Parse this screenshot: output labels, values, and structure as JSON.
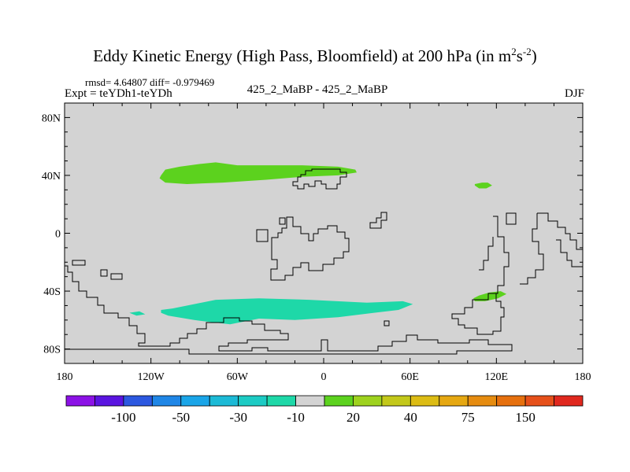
{
  "chart_data": {
    "type": "map-contour",
    "title_main": "Eddy Kinetic Energy (High Pass, Bloomfield) at 200 hPa (in m",
    "title_sup1": "2",
    "title_mid": "s",
    "title_sup2": "-2",
    "title_end": ")",
    "stats": "rmsd= 4.64807 diff= -0.979469",
    "expt": "Expt = teYDh1-teYDh",
    "case_label": "425_2_MaBP - 425_2_MaBP",
    "season": "DJF",
    "xlim": [
      -180,
      180
    ],
    "ylim": [
      -90,
      90
    ],
    "x_ticks": [
      {
        "value": -180,
        "label": "180"
      },
      {
        "value": -120,
        "label": "120W"
      },
      {
        "value": -60,
        "label": "60W"
      },
      {
        "value": 0,
        "label": "0"
      },
      {
        "value": 60,
        "label": "60E"
      },
      {
        "value": 120,
        "label": "120E"
      },
      {
        "value": 180,
        "label": "180"
      }
    ],
    "y_ticks": [
      {
        "value": 80,
        "label": "80N"
      },
      {
        "value": 40,
        "label": "40N"
      },
      {
        "value": 0,
        "label": "0"
      },
      {
        "value": -40,
        "label": "40S"
      },
      {
        "value": -80,
        "label": "80S"
      }
    ],
    "background_color": "#d3d3d3",
    "colorbar": {
      "colors": [
        "#8c12e6",
        "#5a14e0",
        "#2c58e0",
        "#1f86e6",
        "#1aa5e8",
        "#1cbad6",
        "#1ccbc4",
        "#1ed8a8",
        "#d3d3d3",
        "#5cd21e",
        "#9ed21e",
        "#c3c81a",
        "#dcbc14",
        "#e6a812",
        "#e68c10",
        "#e6700e",
        "#e6501a",
        "#e0281e"
      ],
      "labels": [
        {
          "after_index": 1,
          "text": "-100"
        },
        {
          "after_index": 3,
          "text": "-50"
        },
        {
          "after_index": 5,
          "text": "-30"
        },
        {
          "after_index": 7,
          "text": "-10"
        },
        {
          "after_index": 9,
          "text": "20"
        },
        {
          "after_index": 11,
          "text": "40"
        },
        {
          "after_index": 13,
          "text": "75"
        },
        {
          "after_index": 15,
          "text": "150"
        }
      ]
    },
    "regions": [
      {
        "name": "north-atlantic-positive",
        "value_class": "10 to 20",
        "color": "#5cd21e",
        "lonlat": [
          [
            -113,
            40
          ],
          [
            -110,
            44
          ],
          [
            -100,
            46
          ],
          [
            -85,
            48
          ],
          [
            -75,
            49
          ],
          [
            -60,
            47
          ],
          [
            -40,
            47
          ],
          [
            -15,
            47
          ],
          [
            10,
            46
          ],
          [
            22,
            44
          ],
          [
            23,
            42
          ],
          [
            10,
            40
          ],
          [
            -15,
            39
          ],
          [
            -40,
            37
          ],
          [
            -70,
            35
          ],
          [
            -95,
            34
          ],
          [
            -110,
            35
          ],
          [
            -114,
            38
          ]
        ]
      },
      {
        "name": "north-pacific-positive",
        "value_class": "10 to 20",
        "color": "#5cd21e",
        "lonlat": [
          [
            105,
            34
          ],
          [
            110,
            35
          ],
          [
            114,
            35
          ],
          [
            117,
            33
          ],
          [
            113,
            31
          ],
          [
            108,
            31
          ],
          [
            105,
            33
          ]
        ]
      },
      {
        "name": "australia-positive",
        "value_class": "10 to 20",
        "color": "#5cd21e",
        "lonlat": [
          [
            104,
            -45
          ],
          [
            108,
            -43
          ],
          [
            115,
            -41
          ],
          [
            123,
            -40
          ],
          [
            127,
            -42
          ],
          [
            121,
            -45
          ],
          [
            112,
            -47
          ],
          [
            105,
            -47
          ]
        ]
      },
      {
        "name": "southern-ocean-negative",
        "value_class": "-10 to 0",
        "color": "#1ed8a8",
        "lonlat": [
          [
            -113,
            -53
          ],
          [
            -105,
            -52
          ],
          [
            -90,
            -49
          ],
          [
            -75,
            -46
          ],
          [
            -45,
            -45
          ],
          [
            -10,
            -46
          ],
          [
            30,
            -48
          ],
          [
            55,
            -47
          ],
          [
            62,
            -49
          ],
          [
            52,
            -53
          ],
          [
            35,
            -55
          ],
          [
            10,
            -58
          ],
          [
            -20,
            -60
          ],
          [
            -45,
            -59
          ],
          [
            -65,
            -63
          ],
          [
            -90,
            -60
          ],
          [
            -108,
            -57
          ],
          [
            -113,
            -55
          ]
        ]
      },
      {
        "name": "southern-pacific-negative",
        "value_class": "-10 to 0",
        "color": "#1ed8a8",
        "lonlat": [
          [
            -135,
            -55
          ],
          [
            -128,
            -54
          ],
          [
            -124,
            -56
          ],
          [
            -130,
            -57
          ]
        ]
      }
    ]
  }
}
